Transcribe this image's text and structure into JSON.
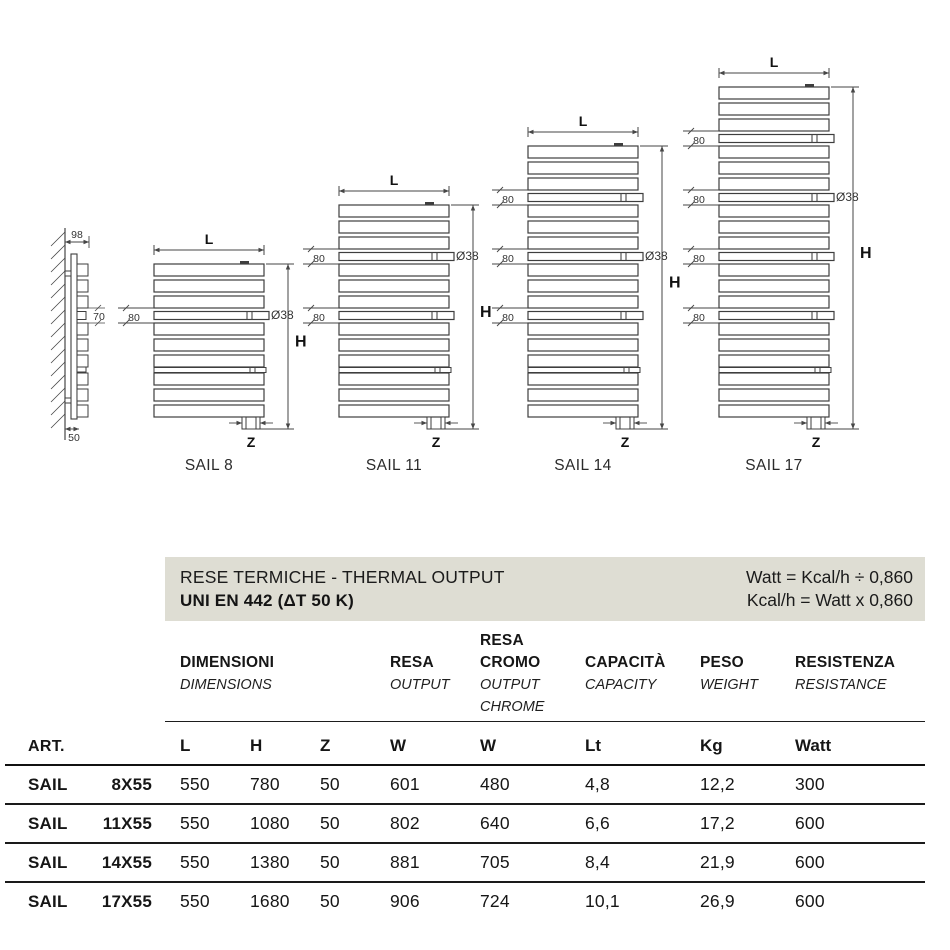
{
  "drawing": {
    "dim_L": "L",
    "dim_H": "H",
    "dim_Z": "Z",
    "dim_80": "80",
    "dim_dia": "Ø38",
    "side": {
      "d98": "98",
      "d70": "70",
      "d50": "50"
    },
    "radiators": [
      {
        "caption": "SAIL 8",
        "tubes": 1,
        "dia_index": 0
      },
      {
        "caption": "SAIL 11",
        "tubes": 2,
        "dia_index": 0
      },
      {
        "caption": "SAIL 14",
        "tubes": 3,
        "dia_index": 1
      },
      {
        "caption": "SAIL 17",
        "tubes": 4,
        "dia_index": 1
      }
    ]
  },
  "thermal_box": {
    "title_line1": "RESE TERMICHE - THERMAL OUTPUT",
    "title_line2": "UNI EN 442 (ΔT 50 K)",
    "formula1": "Watt = Kcal/h ÷ 0,860",
    "formula2": "Kcal/h = Watt x 0,860"
  },
  "table": {
    "art_header": "ART.",
    "groups": [
      {
        "it": "DIMENSIONI",
        "en": "DIMENSIONS"
      },
      {
        "it": "RESA",
        "en": "OUTPUT"
      },
      {
        "it1": "RESA",
        "it2": "CROMO",
        "en1": "OUTPUT",
        "en2": "CHROME"
      },
      {
        "it": "CAPACITÀ",
        "en": "CAPACITY"
      },
      {
        "it": "PESO",
        "en": "WEIGHT"
      },
      {
        "it": "RESISTENZA",
        "en": "RESISTANCE"
      }
    ],
    "columns": [
      "L",
      "H",
      "Z",
      "W",
      "W",
      "Lt",
      "Kg",
      "Watt"
    ],
    "rows": [
      {
        "art": [
          "SAIL",
          "8X55"
        ],
        "values": [
          "550",
          "780",
          "50",
          "601",
          "480",
          "4,8",
          "12,2",
          "300"
        ]
      },
      {
        "art": [
          "SAIL",
          "11X55"
        ],
        "values": [
          "550",
          "1080",
          "50",
          "802",
          "640",
          "6,6",
          "17,2",
          "600"
        ]
      },
      {
        "art": [
          "SAIL",
          "14X55"
        ],
        "values": [
          "550",
          "1380",
          "50",
          "881",
          "705",
          "8,4",
          "21,9",
          "600"
        ]
      },
      {
        "art": [
          "SAIL",
          "17X55"
        ],
        "values": [
          "550",
          "1680",
          "50",
          "906",
          "724",
          "10,1",
          "26,9",
          "600"
        ]
      }
    ]
  }
}
